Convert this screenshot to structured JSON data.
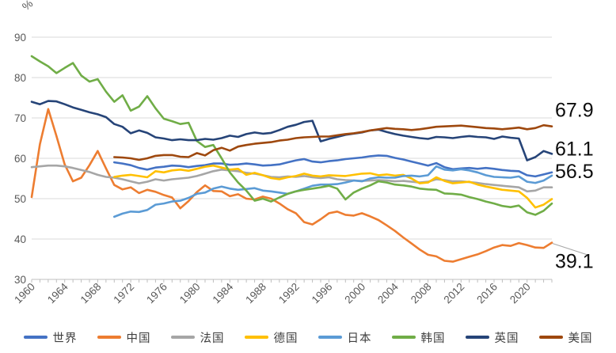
{
  "chart_data": {
    "type": "line",
    "title": "",
    "unit_label": "%",
    "xlabel": "",
    "ylabel": "%",
    "x_start": 1960,
    "x_end": 2023,
    "x_step": 1,
    "ylim": [
      30,
      93
    ],
    "y_ticks": [
      30,
      40,
      50,
      60,
      70,
      80,
      90
    ],
    "x_tick_labels": [
      "1960",
      "1964",
      "1968",
      "1972",
      "1976",
      "1980",
      "1984",
      "1988",
      "1992",
      "1996",
      "2000",
      "2004",
      "2008",
      "2012",
      "2016",
      "2020"
    ],
    "grid": "horizontal",
    "legend_position": "bottom",
    "colors": {
      "grid": "#D9D9D9",
      "axis": "#BFBFBF",
      "tick_text": "#595959",
      "end_label_text": "#0D0D0D",
      "leader": "#A6A6A6"
    },
    "series": [
      {
        "name": "世界",
        "id": "world",
        "color": "#4472C4",
        "start_year": 1970,
        "values": [
          59.0,
          58.7,
          58.3,
          57.6,
          57.2,
          57.7,
          57.9,
          58.2,
          58.1,
          57.8,
          58.1,
          58.3,
          58.7,
          58.7,
          58.4,
          58.5,
          58.7,
          58.5,
          58.2,
          58.3,
          58.5,
          59.0,
          59.5,
          59.8,
          59.2,
          59.0,
          59.3,
          59.5,
          59.8,
          60.0,
          60.2,
          60.5,
          60.7,
          60.6,
          60.1,
          59.7,
          59.2,
          58.7,
          58.2,
          58.8,
          57.8,
          57.3,
          57.5,
          57.6,
          57.4,
          57.6,
          57.4,
          57.1,
          56.9,
          56.8,
          55.8,
          55.5,
          56.0,
          56.5
        ]
      },
      {
        "name": "中国",
        "id": "china",
        "color": "#ED7D31",
        "start_year": 1960,
        "values": [
          50.4,
          63.5,
          72.2,
          65.5,
          58.5,
          54.3,
          55.2,
          58.3,
          61.8,
          57.5,
          53.4,
          52.3,
          52.8,
          51.4,
          52.2,
          51.7,
          50.9,
          50.3,
          47.6,
          49.4,
          51.6,
          53.3,
          51.9,
          51.8,
          50.6,
          51.1,
          50.0,
          49.8,
          50.5,
          50.0,
          48.8,
          47.4,
          46.4,
          44.2,
          43.6,
          44.9,
          46.4,
          46.8,
          46.0,
          45.8,
          46.4,
          45.6,
          44.7,
          43.4,
          42.0,
          40.4,
          38.9,
          37.4,
          36.1,
          35.7,
          34.6,
          34.4,
          35.0,
          35.6,
          36.2,
          37.0,
          37.9,
          38.5,
          38.3,
          39.0,
          38.5,
          37.9,
          37.8,
          39.1
        ]
      },
      {
        "name": "法国",
        "id": "france",
        "color": "#A6A6A6",
        "start_year": 1960,
        "values": [
          57.8,
          58.0,
          58.2,
          58.2,
          58.0,
          57.6,
          57.1,
          56.6,
          55.9,
          55.4,
          55.2,
          54.8,
          54.3,
          53.8,
          54.2,
          54.8,
          54.5,
          54.8,
          55.0,
          55.2,
          55.6,
          56.2,
          56.8,
          57.2,
          57.0,
          56.8,
          56.4,
          56.2,
          55.8,
          55.4,
          55.3,
          55.5,
          55.4,
          55.6,
          55.3,
          55.1,
          55.3,
          54.8,
          54.6,
          54.5,
          54.4,
          54.5,
          54.6,
          54.5,
          54.3,
          54.4,
          54.2,
          54.0,
          54.2,
          54.8,
          54.6,
          54.3,
          54.3,
          54.1,
          53.9,
          53.6,
          53.4,
          53.2,
          53.0,
          52.8,
          51.8,
          52.0,
          52.8,
          52.8
        ]
      },
      {
        "name": "德国",
        "id": "germany",
        "color": "#FFC000",
        "start_year": 1970,
        "values": [
          55.4,
          55.7,
          55.9,
          55.6,
          55.3,
          56.8,
          56.5,
          57.0,
          57.2,
          56.9,
          57.4,
          57.9,
          58.2,
          57.7,
          57.2,
          57.4,
          55.9,
          56.4,
          55.8,
          55.1,
          54.8,
          55.3,
          55.6,
          56.2,
          55.7,
          55.5,
          55.8,
          55.7,
          55.6,
          55.9,
          56.2,
          56.3,
          55.8,
          56.0,
          55.7,
          55.9,
          55.0,
          53.8,
          54.0,
          55.3,
          54.4,
          53.8,
          54.0,
          54.2,
          53.5,
          53.0,
          52.6,
          52.2,
          52.0,
          51.8,
          50.2,
          47.8,
          48.5,
          49.9
        ]
      },
      {
        "name": "日本",
        "id": "japan",
        "color": "#5B9BD5",
        "start_year": 1970,
        "values": [
          45.5,
          46.3,
          46.8,
          46.7,
          47.2,
          48.5,
          48.8,
          49.3,
          49.5,
          50.2,
          51.2,
          51.5,
          52.5,
          53.0,
          52.5,
          52.2,
          52.4,
          52.6,
          52.0,
          51.8,
          51.5,
          51.2,
          51.8,
          52.5,
          53.2,
          53.5,
          53.5,
          53.6,
          54.0,
          54.5,
          54.3,
          55.0,
          55.3,
          55.2,
          55.2,
          55.6,
          55.7,
          55.5,
          55.8,
          58.0,
          57.2,
          57.0,
          57.3,
          57.0,
          56.5,
          55.8,
          55.4,
          55.3,
          55.2,
          55.5,
          54.2,
          53.9,
          54.5,
          55.7
        ]
      },
      {
        "name": "韩国",
        "id": "korea",
        "color": "#70AD47",
        "start_year": 1960,
        "values": [
          85.3,
          84.0,
          82.8,
          81.1,
          82.4,
          83.6,
          80.5,
          79.0,
          79.6,
          76.5,
          74.0,
          75.6,
          71.8,
          72.8,
          75.4,
          72.4,
          69.8,
          69.2,
          68.5,
          68.8,
          64.3,
          62.8,
          63.3,
          60.0,
          56.5,
          54.0,
          52.0,
          49.5,
          50.0,
          49.3,
          50.3,
          51.2,
          51.8,
          52.2,
          52.5,
          52.8,
          53.2,
          52.5,
          49.8,
          51.5,
          52.5,
          53.3,
          54.3,
          54.0,
          53.5,
          53.3,
          53.0,
          52.5,
          52.3,
          52.2,
          51.3,
          51.2,
          51.0,
          50.4,
          49.9,
          49.3,
          48.8,
          48.2,
          47.9,
          48.3,
          46.6,
          46.0,
          47.0,
          48.8
        ]
      },
      {
        "name": "英国",
        "id": "uk",
        "color": "#264478",
        "start_year": 1960,
        "values": [
          74.0,
          73.4,
          74.2,
          74.1,
          73.4,
          72.6,
          72.0,
          71.4,
          70.9,
          70.2,
          68.5,
          67.8,
          66.2,
          66.9,
          66.3,
          65.2,
          64.9,
          64.5,
          64.7,
          64.5,
          64.5,
          64.8,
          64.6,
          65.0,
          65.6,
          65.3,
          66.0,
          66.4,
          66.1,
          66.3,
          67.0,
          67.8,
          68.3,
          69.0,
          69.3,
          64.2,
          64.8,
          65.3,
          65.8,
          66.1,
          66.4,
          66.9,
          67.1,
          66.5,
          66.0,
          65.6,
          65.3,
          65.0,
          64.8,
          65.3,
          65.2,
          65.0,
          65.3,
          65.5,
          65.3,
          65.2,
          64.8,
          65.4,
          65.1,
          64.9,
          59.5,
          60.3,
          61.8,
          61.1
        ]
      },
      {
        "name": "美国",
        "id": "usa",
        "color": "#9E480E",
        "start_year": 1970,
        "values": [
          60.3,
          60.2,
          60.0,
          59.6,
          60.0,
          60.6,
          60.8,
          60.8,
          60.4,
          60.3,
          61.3,
          60.7,
          62.0,
          62.6,
          61.9,
          62.9,
          63.3,
          63.6,
          63.8,
          64.0,
          64.4,
          64.6,
          65.0,
          65.2,
          65.3,
          65.4,
          65.4,
          65.7,
          66.0,
          66.2,
          66.5,
          66.9,
          67.2,
          67.5,
          67.3,
          67.2,
          67.0,
          67.2,
          67.5,
          67.8,
          67.9,
          68.0,
          68.1,
          67.9,
          67.7,
          67.5,
          67.4,
          67.2,
          67.4,
          67.6,
          67.2,
          67.5,
          68.2,
          67.9
        ]
      },
      {
        "name": "",
        "id": "",
        "color": "",
        "start_year": 0,
        "values": []
      }
    ],
    "end_labels": [
      {
        "text": "67.9",
        "series": "usa",
        "leader": false
      },
      {
        "text": "61.1",
        "series": "uk",
        "leader": false
      },
      {
        "text": "56.5",
        "series": "world",
        "leader": false
      },
      {
        "text": "39.1",
        "series": "china",
        "leader": true
      }
    ]
  }
}
